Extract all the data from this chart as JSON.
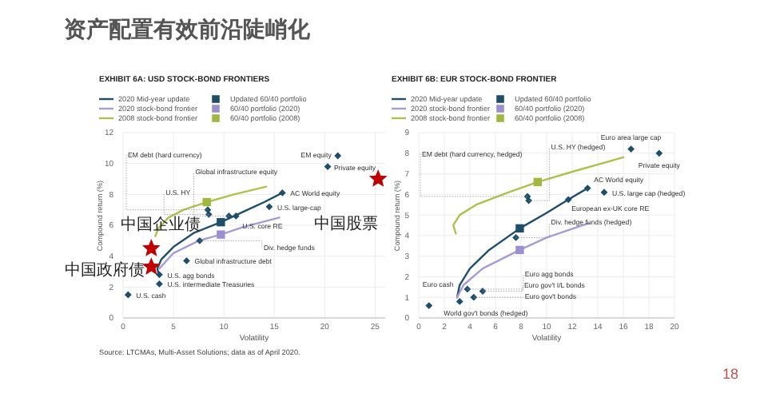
{
  "chart_data": [
    {
      "type": "scatter",
      "title": "EXHIBIT 6A: USD STOCK-BOND FRONTIERS",
      "xlabel": "Volatility",
      "ylabel": "Compound return (%)",
      "xlim": [
        0,
        26
      ],
      "ylim": [
        0,
        12
      ],
      "xticks": [
        0,
        5,
        10,
        15,
        20,
        25
      ],
      "yticks": [
        0,
        2,
        4,
        6,
        8,
        10,
        12
      ],
      "grid": true,
      "legend": "top left",
      "series": [
        {
          "name": "2020 Mid-year update",
          "type": "line",
          "color": "#1f4e6b",
          "marker": "none",
          "x": [
            3.5,
            3.4,
            3.8,
            5,
            7,
            9.7,
            12,
            14,
            15.8
          ],
          "values": [
            2.9,
            3.2,
            3.8,
            4.6,
            5.5,
            6.2,
            6.9,
            7.5,
            8.1
          ]
        },
        {
          "name": "2020 stock-bond frontier",
          "type": "line",
          "color": "#a89ad6",
          "marker": "none",
          "x": [
            3.6,
            5,
            7.5,
            9.7,
            12,
            15.5
          ],
          "values": [
            3.2,
            4.2,
            5.0,
            5.4,
            5.9,
            6.5
          ]
        },
        {
          "name": "2008 stock-bond frontier",
          "type": "line",
          "color": "#adc24a",
          "marker": "none",
          "x": [
            3.2,
            3.5,
            4.5,
            6,
            8.3,
            11,
            14.2
          ],
          "values": [
            5.3,
            5.8,
            6.5,
            7.0,
            7.5,
            8.0,
            8.5
          ]
        },
        {
          "name": "Updated 60/40 portfolio",
          "type": "scatter",
          "color": "#1f4e6b",
          "marker": "square",
          "x": [
            9.7
          ],
          "values": [
            6.2
          ]
        },
        {
          "name": "60/40 portfolio (2020)",
          "type": "scatter",
          "color": "#9b8fd0",
          "marker": "square",
          "x": [
            9.7
          ],
          "values": [
            5.4
          ]
        },
        {
          "name": "60/40 portfolio (2008)",
          "type": "scatter",
          "color": "#a0b840",
          "marker": "square",
          "x": [
            8.3
          ],
          "values": [
            7.5
          ]
        },
        {
          "type": "scatter",
          "color": "#1f4e6b",
          "marker": "diamond",
          "x": [
            0.5,
            3.6,
            3.6,
            6.3,
            7.6,
            11.2,
            14.5,
            15.8,
            21.3,
            20.3,
            8.5,
            8.4,
            10.5
          ],
          "values": [
            1.5,
            2.2,
            2.8,
            3.7,
            5.0,
            6.6,
            7.2,
            8.1,
            10.5,
            9.8,
            6.7,
            7.0,
            6.6
          ]
        },
        {
          "type": "scatter",
          "color": "#c00000",
          "marker": "star",
          "x": [
            25.3,
            2.8,
            2.8
          ],
          "values": [
            9.0,
            4.5,
            3.3
          ]
        }
      ],
      "annotations": [
        "资产配置有效前沿陡峭化",
        "Source: LTCMAs, Multi-Asset Solutions; data as of April 2020.",
        {
          "text": "U.S. cash",
          "x": 0.5,
          "y": 1.5
        },
        {
          "text": "U.S. intermediate Treasuries",
          "x": 3.6,
          "y": 2.2
        },
        {
          "text": "U.S. agg bonds",
          "x": 3.6,
          "y": 2.8
        },
        {
          "text": "Global infrastructure debt",
          "x": 6.3,
          "y": 3.7
        },
        {
          "text": "Div. hedge funds",
          "x": 7.6,
          "y": 5.0
        },
        {
          "text": "U.S. core RE",
          "x": 11.2,
          "y": 6.6
        },
        {
          "text": "U.S. large-cap",
          "x": 14.5,
          "y": 7.2
        },
        {
          "text": "AC World equity",
          "x": 15.8,
          "y": 8.1
        },
        {
          "text": "EM equity",
          "x": 21.3,
          "y": 10.5
        },
        {
          "text": "Private equity",
          "x": 20.3,
          "y": 9.8
        },
        {
          "text": "U.S. HY",
          "x": 8.5,
          "y": 6.7
        },
        {
          "text": "EM debt (hard currency)",
          "x": 8.4,
          "y": 7.0
        },
        {
          "text": "Global infrastructure equity",
          "x": 10.5,
          "y": 6.6
        },
        {
          "text": "中国股票",
          "x": 25.3,
          "y": 9.0
        },
        {
          "text": "中国企业债",
          "x": 2.8,
          "y": 4.5
        },
        {
          "text": "中国政府债",
          "x": 2.8,
          "y": 3.3
        }
      ]
    },
    {
      "type": "scatter",
      "title": "EXHIBIT 6B: EUR STOCK-BOND FRONTIER",
      "xlabel": "Volatility",
      "ylabel": "Compound return (%)",
      "xlim": [
        0,
        20
      ],
      "ylim": [
        0,
        9
      ],
      "xticks": [
        0,
        2,
        4,
        6,
        8,
        10,
        12,
        14,
        16,
        18,
        20
      ],
      "yticks": [
        0,
        1,
        2,
        3,
        4,
        5,
        6,
        7,
        8,
        9
      ],
      "grid": true,
      "legend": "top left",
      "series": [
        {
          "name": "2020 Mid-year update",
          "type": "line",
          "color": "#1f4e6b",
          "marker": "none",
          "x": [
            3.0,
            3.2,
            4,
            5.5,
            7.9,
            10,
            11.7,
            13.2
          ],
          "values": [
            1.0,
            1.6,
            2.4,
            3.3,
            4.35,
            5.1,
            5.75,
            6.3
          ]
        },
        {
          "name": "2020 stock-bond frontier",
          "type": "line",
          "color": "#a89ad6",
          "marker": "none",
          "x": [
            3.0,
            3.5,
            5,
            7.9,
            10,
            13.3
          ],
          "values": [
            1.0,
            1.6,
            2.4,
            3.3,
            3.9,
            4.6
          ]
        },
        {
          "name": "2008 stock-bond frontier",
          "type": "line",
          "color": "#adc24a",
          "marker": "none",
          "x": [
            2.9,
            2.7,
            3.2,
            4.5,
            7,
            9.3,
            12,
            16
          ],
          "values": [
            4.1,
            4.5,
            5.0,
            5.5,
            6.1,
            6.6,
            7.1,
            7.8
          ]
        },
        {
          "name": "Updated 60/40 portfolio",
          "type": "scatter",
          "color": "#1f4e6b",
          "marker": "square",
          "x": [
            7.9
          ],
          "values": [
            4.35
          ]
        },
        {
          "name": "60/40 portfolio (2020)",
          "type": "scatter",
          "color": "#9b8fd0",
          "marker": "square",
          "x": [
            7.9
          ],
          "values": [
            3.3
          ]
        },
        {
          "name": "60/40 portfolio (2008)",
          "type": "scatter",
          "color": "#a0b840",
          "marker": "square",
          "x": [
            9.3
          ],
          "values": [
            6.6
          ]
        },
        {
          "type": "scatter",
          "color": "#1f4e6b",
          "marker": "diamond",
          "x": [
            0.8,
            3.2,
            4.3,
            3.8,
            5.0,
            7.6,
            8.5,
            8.6,
            11.7,
            13.2,
            14.5,
            16.6,
            18.8
          ],
          "values": [
            0.6,
            0.8,
            1.0,
            1.4,
            1.3,
            3.9,
            5.9,
            5.7,
            5.75,
            6.3,
            6.1,
            8.2,
            8.0
          ]
        }
      ],
      "annotations": [
        "18",
        {
          "text": "Euro cash",
          "x": 0.8,
          "y": 0.6
        },
        {
          "text": "World gov't bonds (hedged)",
          "x": 3.2,
          "y": 0.8
        },
        {
          "text": "Euro gov't bonds",
          "x": 4.3,
          "y": 1.0
        },
        {
          "text": "Euro agg bonds",
          "x": 3.8,
          "y": 1.4
        },
        {
          "text": "Euro gov't I/L bonds",
          "x": 5.0,
          "y": 1.3
        },
        {
          "text": "Div. hedge funds (hedged)",
          "x": 7.6,
          "y": 3.9
        },
        {
          "text": "EM debt (hard currency, hedged)",
          "x": 8.5,
          "y": 5.9
        },
        {
          "text": "U.S. HY (hedged)",
          "x": 8.6,
          "y": 5.7
        },
        {
          "text": "European ex-UK core RE",
          "x": 11.7,
          "y": 5.75
        },
        {
          "text": "AC World equity",
          "x": 13.2,
          "y": 6.3
        },
        {
          "text": "U.S. large cap (hedged)",
          "x": 14.5,
          "y": 6.1
        },
        {
          "text": "Euro area large cap",
          "x": 16.6,
          "y": 8.2
        },
        {
          "text": "Private equity",
          "x": 18.8,
          "y": 8.0
        }
      ]
    }
  ]
}
